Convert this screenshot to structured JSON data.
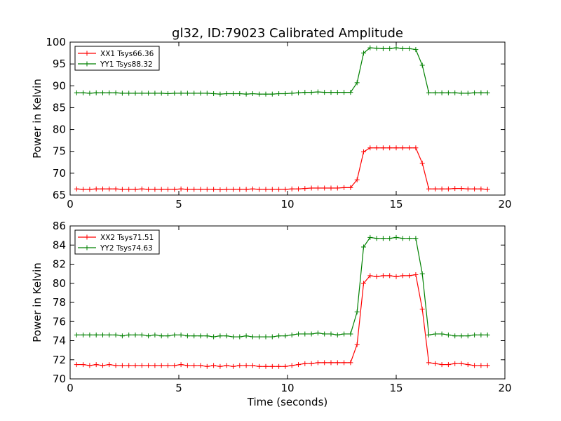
{
  "figure": {
    "title": "gl32, ID:79023 Calibrated Amplitude",
    "xlabel": "Time (seconds)"
  },
  "chart_data": [
    {
      "type": "line",
      "title": "gl32, ID:79023 Calibrated Amplitude",
      "xlabel": "",
      "ylabel": "Power in Kelvin",
      "xlim": [
        0,
        20
      ],
      "ylim": [
        65,
        100
      ],
      "xticks": [
        0,
        5,
        10,
        15,
        20
      ],
      "yticks": [
        65,
        70,
        75,
        80,
        85,
        90,
        95,
        100
      ],
      "grid": false,
      "legend": "top-left",
      "x": [
        0.3,
        0.6,
        0.9,
        1.2,
        1.5,
        1.8,
        2.1,
        2.4,
        2.7,
        3.0,
        3.3,
        3.6,
        3.9,
        4.2,
        4.5,
        4.8,
        5.1,
        5.4,
        5.7,
        6.0,
        6.3,
        6.6,
        6.9,
        7.2,
        7.5,
        7.8,
        8.1,
        8.4,
        8.7,
        9.0,
        9.3,
        9.6,
        9.9,
        10.2,
        10.5,
        10.8,
        11.1,
        11.4,
        11.7,
        12.0,
        12.3,
        12.6,
        12.9,
        13.2,
        13.5,
        13.8,
        14.1,
        14.4,
        14.7,
        15.0,
        15.3,
        15.6,
        15.9,
        16.2,
        16.5,
        16.8,
        17.1,
        17.4,
        17.7,
        18.0,
        18.3,
        18.6,
        18.9,
        19.2
      ],
      "series": [
        {
          "name": "XX1 Tsys66.36",
          "color": "#ff0000",
          "values": [
            66.4,
            66.3,
            66.3,
            66.4,
            66.4,
            66.4,
            66.4,
            66.3,
            66.3,
            66.3,
            66.4,
            66.3,
            66.3,
            66.3,
            66.3,
            66.3,
            66.4,
            66.3,
            66.3,
            66.3,
            66.3,
            66.3,
            66.2,
            66.3,
            66.3,
            66.3,
            66.3,
            66.4,
            66.3,
            66.3,
            66.3,
            66.3,
            66.3,
            66.4,
            66.4,
            66.5,
            66.6,
            66.6,
            66.6,
            66.6,
            66.6,
            66.7,
            66.7,
            68.5,
            74.9,
            75.8,
            75.8,
            75.8,
            75.8,
            75.8,
            75.8,
            75.8,
            75.8,
            72.3,
            66.4,
            66.4,
            66.4,
            66.4,
            66.5,
            66.5,
            66.4,
            66.4,
            66.4,
            66.3
          ]
        },
        {
          "name": "YY1 Tsys88.32",
          "color": "#008000",
          "values": [
            88.4,
            88.4,
            88.3,
            88.4,
            88.4,
            88.4,
            88.4,
            88.3,
            88.3,
            88.3,
            88.3,
            88.3,
            88.3,
            88.3,
            88.2,
            88.3,
            88.3,
            88.3,
            88.3,
            88.3,
            88.3,
            88.2,
            88.1,
            88.2,
            88.2,
            88.2,
            88.1,
            88.2,
            88.1,
            88.1,
            88.1,
            88.2,
            88.2,
            88.3,
            88.4,
            88.5,
            88.5,
            88.6,
            88.5,
            88.5,
            88.5,
            88.5,
            88.5,
            90.7,
            97.5,
            98.7,
            98.6,
            98.5,
            98.5,
            98.7,
            98.5,
            98.5,
            98.3,
            94.7,
            88.4,
            88.4,
            88.4,
            88.4,
            88.4,
            88.3,
            88.3,
            88.4,
            88.4,
            88.4
          ]
        }
      ]
    },
    {
      "type": "line",
      "title": "",
      "xlabel": "Time (seconds)",
      "ylabel": "Power in Kelvin",
      "xlim": [
        0,
        20
      ],
      "ylim": [
        70,
        86
      ],
      "xticks": [
        0,
        5,
        10,
        15,
        20
      ],
      "yticks": [
        70,
        72,
        74,
        76,
        78,
        80,
        82,
        84,
        86
      ],
      "grid": false,
      "legend": "top-left",
      "x": [
        0.3,
        0.6,
        0.9,
        1.2,
        1.5,
        1.8,
        2.1,
        2.4,
        2.7,
        3.0,
        3.3,
        3.6,
        3.9,
        4.2,
        4.5,
        4.8,
        5.1,
        5.4,
        5.7,
        6.0,
        6.3,
        6.6,
        6.9,
        7.2,
        7.5,
        7.8,
        8.1,
        8.4,
        8.7,
        9.0,
        9.3,
        9.6,
        9.9,
        10.2,
        10.5,
        10.8,
        11.1,
        11.4,
        11.7,
        12.0,
        12.3,
        12.6,
        12.9,
        13.2,
        13.5,
        13.8,
        14.1,
        14.4,
        14.7,
        15.0,
        15.3,
        15.6,
        15.9,
        16.2,
        16.5,
        16.8,
        17.1,
        17.4,
        17.7,
        18.0,
        18.3,
        18.6,
        18.9,
        19.2
      ],
      "series": [
        {
          "name": "XX2 Tsys71.51",
          "color": "#ff0000",
          "values": [
            71.5,
            71.5,
            71.4,
            71.5,
            71.4,
            71.5,
            71.4,
            71.4,
            71.4,
            71.4,
            71.4,
            71.4,
            71.4,
            71.4,
            71.4,
            71.4,
            71.5,
            71.4,
            71.4,
            71.4,
            71.3,
            71.4,
            71.3,
            71.4,
            71.3,
            71.4,
            71.4,
            71.4,
            71.3,
            71.3,
            71.3,
            71.3,
            71.3,
            71.4,
            71.5,
            71.6,
            71.6,
            71.7,
            71.7,
            71.7,
            71.7,
            71.7,
            71.7,
            73.6,
            80.0,
            80.8,
            80.7,
            80.8,
            80.8,
            80.7,
            80.8,
            80.8,
            80.9,
            77.3,
            71.7,
            71.6,
            71.5,
            71.5,
            71.6,
            71.6,
            71.5,
            71.4,
            71.4,
            71.4
          ]
        },
        {
          "name": "YY2 Tsys74.63",
          "color": "#008000",
          "values": [
            74.6,
            74.6,
            74.6,
            74.6,
            74.6,
            74.6,
            74.6,
            74.5,
            74.6,
            74.6,
            74.6,
            74.5,
            74.6,
            74.5,
            74.5,
            74.6,
            74.6,
            74.5,
            74.5,
            74.5,
            74.5,
            74.4,
            74.5,
            74.5,
            74.4,
            74.4,
            74.5,
            74.4,
            74.4,
            74.4,
            74.4,
            74.5,
            74.5,
            74.6,
            74.7,
            74.7,
            74.7,
            74.8,
            74.7,
            74.7,
            74.6,
            74.7,
            74.7,
            77.0,
            83.8,
            84.8,
            84.7,
            84.7,
            84.7,
            84.8,
            84.7,
            84.7,
            84.7,
            81.0,
            74.6,
            74.7,
            74.7,
            74.6,
            74.5,
            74.5,
            74.5,
            74.6,
            74.6,
            74.6
          ]
        }
      ]
    }
  ]
}
